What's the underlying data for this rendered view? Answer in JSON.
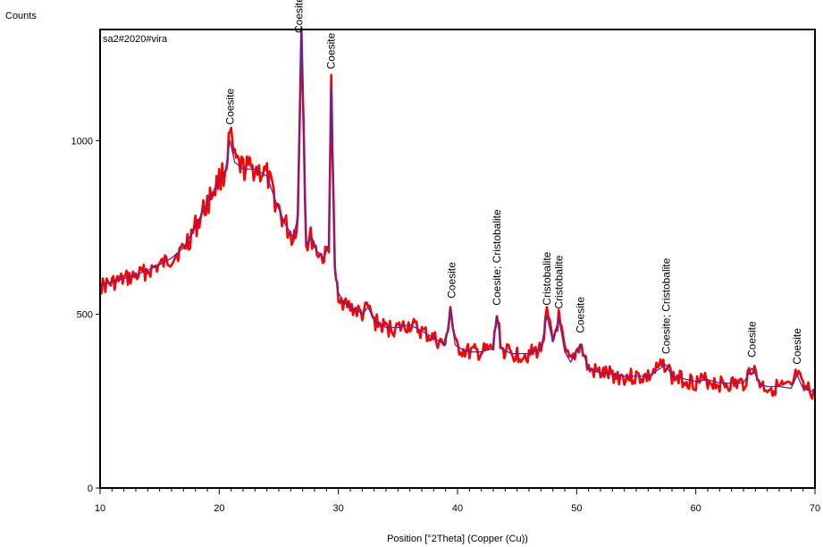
{
  "chart_data": {
    "type": "line",
    "sample_label": "sa2#2020#vira",
    "ylabel": "Counts",
    "xlabel": "Position [°2Theta] (Copper (Cu))",
    "xlim": [
      10,
      70
    ],
    "ylim": [
      0,
      1320
    ],
    "x_ticks": [
      10,
      20,
      30,
      40,
      50,
      60,
      70
    ],
    "y_ticks": [
      0,
      500,
      1000
    ],
    "grid": false,
    "colors": {
      "measured": "#ff0000",
      "calculated": "#3a2fb8"
    },
    "series": [
      {
        "x": [
          10,
          11,
          12,
          13,
          14,
          15,
          16,
          17,
          18,
          19,
          20,
          20.5,
          20.9,
          21.3,
          22,
          23,
          24,
          24.8,
          25.5,
          26.2,
          26.6,
          26.9,
          27.3,
          27.8,
          28.2,
          28.8,
          29.2,
          29.4,
          29.7,
          30.0,
          30.5,
          31,
          32,
          32.5,
          33,
          34,
          35,
          36,
          37,
          38,
          39,
          39.4,
          39.8,
          40.5,
          41,
          42,
          43,
          43.3,
          43.7,
          44.5,
          45,
          46,
          47,
          47.5,
          48,
          48.5,
          49,
          49.5,
          50.3,
          51,
          52,
          54,
          56,
          57.5,
          58,
          60,
          61,
          62,
          64,
          64.7,
          65.5,
          66,
          67,
          68,
          68.5,
          69,
          70
        ],
        "y": [
          580,
          590,
          600,
          610,
          625,
          640,
          660,
          690,
          750,
          820,
          890,
          910,
          1020,
          940,
          920,
          920,
          900,
          820,
          760,
          720,
          780,
          1340,
          700,
          720,
          680,
          660,
          700,
          1160,
          620,
          560,
          530,
          520,
          500,
          520,
          480,
          460,
          460,
          470,
          450,
          430,
          410,
          520,
          410,
          395,
          390,
          390,
          400,
          500,
          400,
          385,
          385,
          385,
          400,
          500,
          420,
          490,
          390,
          360,
          415,
          340,
          330,
          320,
          320,
          360,
          320,
          305,
          310,
          300,
          300,
          350,
          295,
          290,
          290,
          285,
          330,
          285,
          275
        ]
      },
      {
        "x": [
          10,
          11,
          12,
          13,
          14,
          15,
          16,
          17,
          18,
          19,
          20,
          20.5,
          20.9,
          21.3,
          22,
          23,
          24,
          24.8,
          25.5,
          26.2,
          26.6,
          26.9,
          27.3,
          27.8,
          28.2,
          28.8,
          29.2,
          29.4,
          29.7,
          30.0,
          30.5,
          31,
          32,
          32.5,
          33,
          34,
          35,
          36,
          37,
          38,
          39,
          39.4,
          39.8,
          40.5,
          41,
          42,
          43,
          43.3,
          43.7,
          44.5,
          45,
          46,
          47,
          47.5,
          48,
          48.5,
          49,
          49.5,
          50.3,
          51,
          52,
          54,
          56,
          57.5,
          58,
          60,
          61,
          62,
          64,
          64.7,
          65.5,
          66,
          67,
          68,
          68.5,
          69,
          70
        ],
        "y": [
          585,
          593,
          603,
          613,
          627,
          643,
          662,
          692,
          752,
          822,
          888,
          908,
          1000,
          938,
          918,
          918,
          898,
          820,
          762,
          722,
          780,
          1320,
          702,
          720,
          682,
          662,
          702,
          1150,
          620,
          562,
          532,
          522,
          502,
          520,
          482,
          462,
          462,
          470,
          452,
          432,
          412,
          520,
          412,
          397,
          392,
          392,
          402,
          495,
          402,
          387,
          387,
          387,
          402,
          495,
          422,
          490,
          392,
          362,
          415,
          342,
          332,
          322,
          322,
          355,
          322,
          307,
          312,
          302,
          302,
          345,
          297,
          292,
          292,
          287,
          325,
          287,
          277
        ]
      }
    ],
    "annotations": [
      {
        "text": "Coesite",
        "x": 20.9,
        "y": 1020
      },
      {
        "text": "Coesite",
        "x": 26.7,
        "y": 1340
      },
      {
        "text": "Coesite",
        "x": 29.4,
        "y": 1180
      },
      {
        "text": "Coesite",
        "x": 39.5,
        "y": 520
      },
      {
        "text": "Coesite; Cristobalite",
        "x": 43.3,
        "y": 500
      },
      {
        "text": "Cristobalite",
        "x": 47.5,
        "y": 500
      },
      {
        "text": "Cristobalite",
        "x": 48.5,
        "y": 490
      },
      {
        "text": "Coesite",
        "x": 50.3,
        "y": 420
      },
      {
        "text": "Coesite; Cristobalite",
        "x": 57.5,
        "y": 360
      },
      {
        "text": "Coesite",
        "x": 64.7,
        "y": 350
      },
      {
        "text": "Coesite",
        "x": 68.5,
        "y": 330
      }
    ]
  }
}
